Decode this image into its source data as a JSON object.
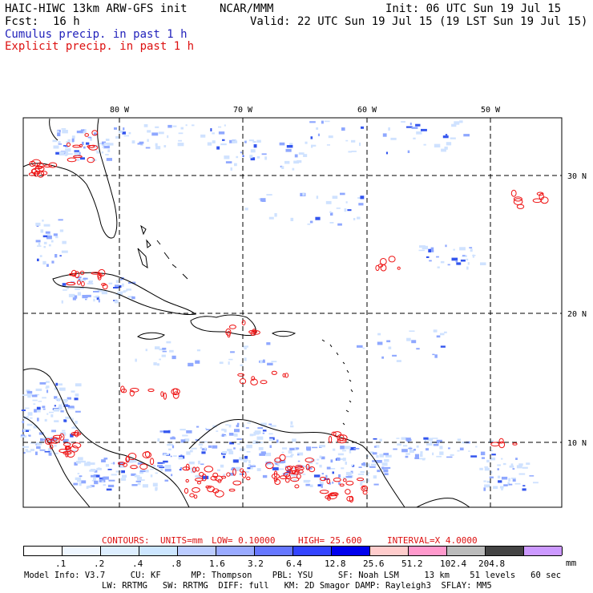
{
  "header": {
    "model_title": "HAIC-HIWC 13km ARW-GFS init",
    "org": "NCAR/MMM",
    "init": "Init: 06 UTC Sun 19 Jul 15",
    "fcst_label": "Fcst:",
    "fcst_value": "16 h",
    "valid": "Valid: 22 UTC Sun 19 Jul 15 (19 LST Sun 19 Jul 15)",
    "field1": "Cumulus precip. in past 1 h",
    "field2": "Explicit precip. in past 1 h"
  },
  "map": {
    "lon_labels": [
      "80 W",
      "70 W",
      "60 W",
      "50 W"
    ],
    "lat_labels": [
      "30 N",
      "20 N",
      "10 N"
    ],
    "colors": {
      "cumulus": "#3355ee",
      "explicit": "#ee1111",
      "coast": "#000000"
    }
  },
  "contours": {
    "label": "CONTOURS:",
    "units": "UNITS=mm",
    "low": "LOW= 0.10000",
    "high": "HIGH= 25.600",
    "interval": "INTERVAL=X 4.0000"
  },
  "legend": {
    "unit": "mm",
    "labels": [
      ".1",
      ".2",
      ".4",
      ".8",
      "1.6",
      "3.2",
      "6.4",
      "12.8",
      "25.6",
      "51.2",
      "102.4",
      "204.8"
    ],
    "colors": [
      "#ffffff",
      "#eef6ff",
      "#ddeeff",
      "#cce6ff",
      "#bbccff",
      "#99aaff",
      "#6677ff",
      "#3344ff",
      "#0000ee",
      "#ffcccc",
      "#ff99cc",
      "#bbbbbb",
      "#444444",
      "#cc99ff"
    ]
  },
  "footer": {
    "line1": "Model Info: V3.7     CU: KF      MP: Thompson    PBL: YSU     SF: Noah LSM     13 km    51 levels   60 sec",
    "line2": "LW: RRTMG   SW: RRTMG  DIFF: full   KM: 2D Smagor DAMP: Rayleigh3  SFLAY: MM5"
  }
}
